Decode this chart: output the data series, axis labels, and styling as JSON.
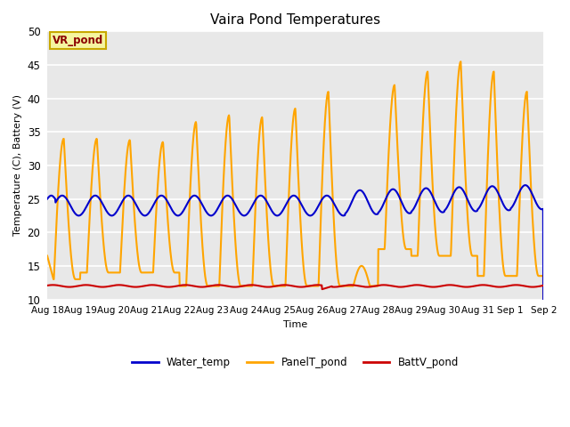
{
  "title": "Vaira Pond Temperatures",
  "ylabel": "Temperature (C), Battery (V)",
  "xlabel": "Time",
  "ylim": [
    10,
    50
  ],
  "yticks": [
    10,
    15,
    20,
    25,
    30,
    35,
    40,
    45,
    50
  ],
  "outer_bg": "#ffffff",
  "plot_bg_color": "#e8e8e8",
  "water_color": "#0000cc",
  "panel_color": "#ffa500",
  "batt_color": "#cc0000",
  "annotation_text": "VR_pond",
  "annotation_color": "#8b0000",
  "annotation_bg": "#f5f5a0",
  "annotation_border": "#c8a800",
  "legend_labels": [
    "Water_temp",
    "PanelT_pond",
    "BattV_pond"
  ],
  "x_tick_labels": [
    "Aug 18",
    "Aug 19",
    "Aug 20",
    "Aug 21",
    "Aug 22",
    "Aug 23",
    "Aug 24",
    "Aug 25",
    "Aug 26",
    "Aug 27",
    "Aug 28",
    "Aug 29",
    "Aug 30",
    "Aug 31",
    "Sep 1",
    "Sep 2"
  ],
  "num_days": 15,
  "pts_per_day": 96
}
